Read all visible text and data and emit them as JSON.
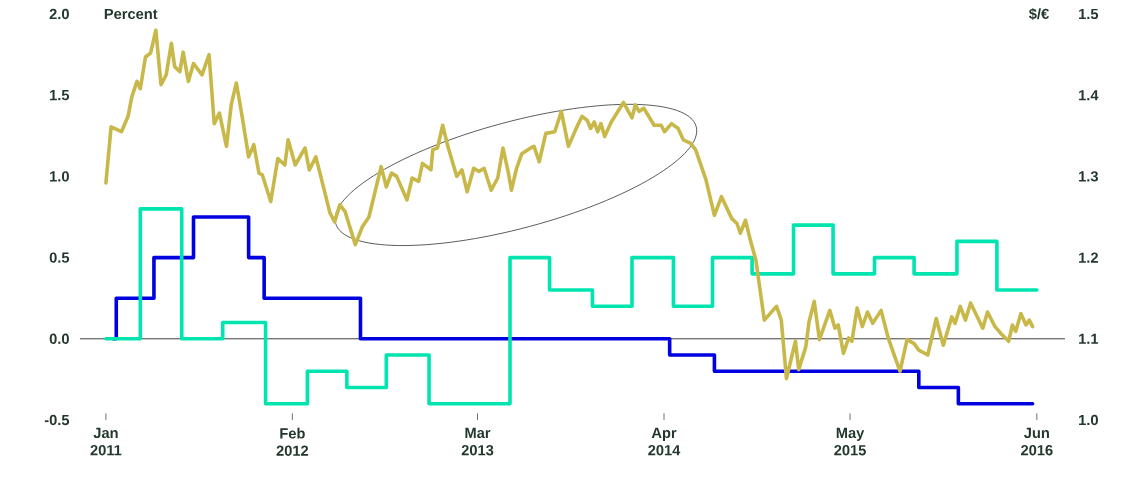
{
  "chart_data": {
    "type": "line",
    "ylabel": "Percent",
    "y2label": "$/€",
    "xlim": [
      "2010-11-07",
      "2016-07-31"
    ],
    "xticks": [
      {
        "value": "2011-01",
        "label": "Jan 2011"
      },
      {
        "value": "2012-02",
        "label": "Feb 2012"
      },
      {
        "value": "2013-03",
        "label": "Mar 2013"
      },
      {
        "value": "2014-04",
        "label": "Apr 2014"
      },
      {
        "value": "2015-05",
        "label": "May 2015"
      },
      {
        "value": "2016-06",
        "label": "Jun 2016"
      }
    ],
    "ylim": [
      -0.5,
      2.0
    ],
    "yticks": [
      {
        "value": -0.5,
        "label": "-0.5"
      },
      {
        "value": 0,
        "label": "0.0"
      },
      {
        "value": 0.5,
        "label": "0.5"
      },
      {
        "value": 1.0,
        "label": "1.0"
      },
      {
        "value": 1.5,
        "label": "1.5"
      },
      {
        "value": 2.0,
        "label": "2.0"
      }
    ],
    "y2lim": [
      1.0,
      1.5
    ],
    "y2ticks": [
      {
        "value": 1.0,
        "label": "1.0"
      },
      {
        "value": 1.1,
        "label": "1.1"
      },
      {
        "value": 1.2,
        "label": "1.2"
      },
      {
        "value": 1.3,
        "label": "1.3"
      },
      {
        "value": 1.4,
        "label": "1.4"
      },
      {
        "value": 1.5,
        "label": "1.5"
      }
    ],
    "grid": false,
    "legend": false,
    "marker": "none",
    "line_style": "solid",
    "ref_lines": [
      {
        "axis": "y",
        "value": 0,
        "color": "#333333"
      }
    ],
    "series": [
      {
        "type": "line",
        "axis": "y2",
        "color": "#c8b84a",
        "x": [
          "2011-01-01",
          "2011-01-12",
          "2011-02-03",
          "2011-02-17",
          "2011-02-25",
          "2011-03-08",
          "2011-03-15",
          "2011-03-26",
          "2011-04-06",
          "2011-04-17",
          "2011-04-28",
          "2011-05-09",
          "2011-05-20",
          "2011-05-27",
          "2011-06-07",
          "2011-06-14",
          "2011-06-25",
          "2011-07-06",
          "2011-07-24",
          "2011-08-08",
          "2011-08-19",
          "2011-08-30",
          "2011-09-14",
          "2011-09-24",
          "2011-10-05",
          "2011-10-16",
          "2011-10-31",
          "2011-11-11",
          "2011-11-22",
          "2011-11-29",
          "2011-12-17",
          "2012-01-01",
          "2012-01-16",
          "2012-01-23",
          "2012-02-07",
          "2012-02-28",
          "2012-03-08",
          "2012-03-22",
          "2012-04-21",
          "2012-05-01",
          "2012-05-12",
          "2012-05-23",
          "2012-06-14",
          "2012-06-29",
          "2012-07-13",
          "2012-08-08",
          "2012-08-19",
          "2012-08-30",
          "2012-09-10",
          "2012-10-02",
          "2012-10-13",
          "2012-10-27",
          "2012-11-04",
          "2012-11-22",
          "2012-11-26",
          "2012-12-06",
          "2012-12-17",
          "2012-12-28",
          "2013-01-16",
          "2013-01-27",
          "2013-02-07",
          "2013-02-21",
          "2013-03-04",
          "2013-03-15",
          "2013-03-30",
          "2013-04-13",
          "2013-04-24",
          "2013-05-05",
          "2013-05-12",
          "2013-05-23",
          "2013-06-03",
          "2013-06-22",
          "2013-06-29",
          "2013-07-10",
          "2013-07-24",
          "2013-08-12",
          "2013-08-26",
          "2013-09-10",
          "2013-09-28",
          "2013-10-09",
          "2013-10-20",
          "2013-10-27",
          "2013-11-04",
          "2013-11-11",
          "2013-11-18",
          "2013-11-26",
          "2013-12-10",
          "2014-01-05",
          "2014-01-23",
          "2014-01-30",
          "2014-02-07",
          "2014-02-17",
          "2014-03-11",
          "2014-03-26",
          "2014-04-02",
          "2014-04-17",
          "2014-05-01",
          "2014-05-12",
          "2014-05-27",
          "2014-06-07",
          "2014-06-29",
          "2014-07-17",
          "2014-08-01",
          "2014-08-23",
          "2014-09-03",
          "2014-09-10",
          "2014-09-21",
          "2014-10-02",
          "2014-10-13",
          "2014-10-31",
          "2014-11-26",
          "2014-12-06",
          "2014-12-17",
          "2015-01-05",
          "2015-01-12",
          "2015-01-27",
          "2015-02-03",
          "2015-02-14",
          "2015-02-25",
          "2015-03-19",
          "2015-03-30",
          "2015-04-06",
          "2015-04-17",
          "2015-04-28",
          "2015-05-05",
          "2015-05-16",
          "2015-05-27",
          "2015-06-07",
          "2015-06-18",
          "2015-07-06",
          "2015-07-21",
          "2015-08-04",
          "2015-08-15",
          "2015-08-30",
          "2015-09-14",
          "2015-09-24",
          "2015-10-13",
          "2015-10-31",
          "2015-11-15",
          "2015-12-03",
          "2015-12-10",
          "2015-12-21",
          "2016-01-01",
          "2016-01-12",
          "2016-02-07",
          "2016-02-17",
          "2016-03-04",
          "2016-03-19",
          "2016-04-02",
          "2016-04-10",
          "2016-04-17",
          "2016-04-28",
          "2016-05-09",
          "2016-05-16",
          "2016-05-23"
        ],
        "values": [
          1.292,
          1.361,
          1.355,
          1.374,
          1.398,
          1.417,
          1.408,
          1.447,
          1.452,
          1.48,
          1.413,
          1.425,
          1.464,
          1.435,
          1.429,
          1.453,
          1.417,
          1.439,
          1.425,
          1.45,
          1.365,
          1.378,
          1.337,
          1.388,
          1.415,
          1.378,
          1.324,
          1.339,
          1.304,
          1.302,
          1.269,
          1.322,
          1.314,
          1.345,
          1.314,
          1.335,
          1.308,
          1.324,
          1.255,
          1.244,
          1.265,
          1.257,
          1.216,
          1.238,
          1.25,
          1.312,
          1.287,
          1.304,
          1.3,
          1.271,
          1.298,
          1.294,
          1.316,
          1.308,
          1.333,
          1.335,
          1.363,
          1.337,
          1.3,
          1.308,
          1.281,
          1.31,
          1.306,
          1.31,
          1.283,
          1.298,
          1.335,
          1.306,
          1.283,
          1.31,
          1.328,
          1.335,
          1.337,
          1.318,
          1.353,
          1.355,
          1.38,
          1.337,
          1.361,
          1.374,
          1.369,
          1.359,
          1.367,
          1.355,
          1.365,
          1.349,
          1.367,
          1.391,
          1.372,
          1.388,
          1.38,
          1.384,
          1.363,
          1.363,
          1.355,
          1.365,
          1.359,
          1.345,
          1.341,
          1.333,
          1.296,
          1.252,
          1.275,
          1.248,
          1.242,
          1.23,
          1.246,
          1.22,
          1.197,
          1.123,
          1.14,
          1.123,
          1.051,
          1.097,
          1.062,
          1.09,
          1.121,
          1.146,
          1.099,
          1.135,
          1.113,
          1.117,
          1.082,
          1.101,
          1.097,
          1.138,
          1.115,
          1.133,
          1.119,
          1.135,
          1.101,
          1.078,
          1.06,
          1.099,
          1.094,
          1.086,
          1.08,
          1.125,
          1.092,
          1.127,
          1.119,
          1.14,
          1.123,
          1.144,
          1.113,
          1.133,
          1.115,
          1.105,
          1.097,
          1.117,
          1.109,
          1.131,
          1.117,
          1.123,
          1.115
        ]
      },
      {
        "type": "step",
        "color": "#0000e0",
        "x": [
          "2011-01-16",
          "2011-01-23",
          "2011-04-13",
          "2011-07-06",
          "2011-10-31",
          "2011-12-03",
          "2012-06-25",
          "2014-04-13",
          "2014-07-17",
          "2015-09-24",
          "2015-12-17",
          "2016-05-23"
        ],
        "values": [
          0,
          0.25,
          0.5,
          0.75,
          0.5,
          0.25,
          0,
          -0.1,
          -0.2,
          -0.3,
          -0.4,
          -0.4
        ]
      },
      {
        "type": "step",
        "color": "#00e5b0",
        "x": [
          "2011-01-01",
          "2011-03-15",
          "2011-06-11",
          "2011-09-06",
          "2011-12-06",
          "2012-03-04",
          "2012-05-27",
          "2012-08-19",
          "2012-11-18",
          "2013-05-09",
          "2013-08-01",
          "2013-10-31",
          "2014-01-23",
          "2014-04-21",
          "2014-07-13",
          "2014-10-05",
          "2015-01-01",
          "2015-03-26",
          "2015-06-22",
          "2015-09-14",
          "2015-12-14",
          "2016-03-08",
          "2016-06-01"
        ],
        "values": [
          0,
          0.8,
          0,
          0.1,
          -0.4,
          -0.2,
          -0.3,
          -0.1,
          -0.4,
          0.5,
          0.3,
          0.2,
          0.5,
          0.2,
          0.5,
          0.4,
          0.7,
          0.4,
          0.5,
          0.4,
          0.6,
          0.3,
          0.3
        ]
      }
    ]
  }
}
